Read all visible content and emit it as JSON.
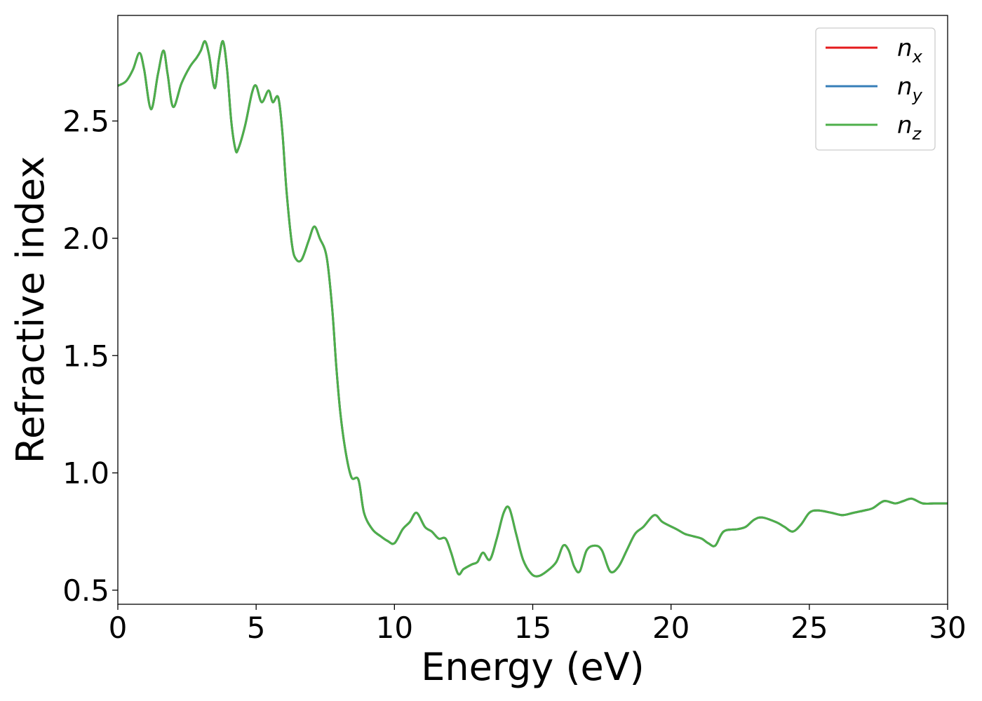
{
  "chart_data": {
    "type": "line",
    "xlabel": "Energy (eV)",
    "ylabel": "Refractive index",
    "xlim": [
      0,
      30
    ],
    "ylim": [
      0.44,
      2.95
    ],
    "xticks": [
      0,
      5,
      10,
      15,
      20,
      25,
      30
    ],
    "xtick_labels": [
      "0",
      "5",
      "10",
      "15",
      "20",
      "25",
      "30"
    ],
    "yticks": [
      0.5,
      1.0,
      1.5,
      2.0,
      2.5
    ],
    "ytick_labels": [
      "0.5",
      "1.0",
      "1.5",
      "2.0",
      "2.5"
    ],
    "grid": false,
    "legend_position": "top-right",
    "x": [
      0,
      0.3,
      0.55,
      0.78,
      0.95,
      1.2,
      1.45,
      1.65,
      1.8,
      2.0,
      2.3,
      2.6,
      2.85,
      3.0,
      3.15,
      3.3,
      3.5,
      3.65,
      3.8,
      3.95,
      4.1,
      4.25,
      4.35,
      4.6,
      4.85,
      5.0,
      5.2,
      5.45,
      5.6,
      5.8,
      5.95,
      6.1,
      6.3,
      6.45,
      6.65,
      6.9,
      7.1,
      7.3,
      7.55,
      7.75,
      7.9,
      8.05,
      8.25,
      8.45,
      8.7,
      8.9,
      9.2,
      9.5,
      9.75,
      10.0,
      10.3,
      10.55,
      10.8,
      11.1,
      11.35,
      11.6,
      11.85,
      12.05,
      12.3,
      12.5,
      12.8,
      13.0,
      13.2,
      13.45,
      13.7,
      13.95,
      14.15,
      14.4,
      14.65,
      14.95,
      15.2,
      15.5,
      15.85,
      16.1,
      16.3,
      16.5,
      16.7,
      16.95,
      17.25,
      17.5,
      17.8,
      18.1,
      18.4,
      18.7,
      19.0,
      19.4,
      19.7,
      20.2,
      20.5,
      20.8,
      21.1,
      21.35,
      21.6,
      21.9,
      22.4,
      22.7,
      23.0,
      23.3,
      23.8,
      24.1,
      24.4,
      24.7,
      25.0,
      25.3,
      25.8,
      26.2,
      26.6,
      27.0,
      27.3,
      27.7,
      28.1,
      28.4,
      28.7,
      29.1,
      29.5,
      30.0
    ],
    "series": [
      {
        "name": "n_x",
        "color": "#e41a1c",
        "values": [
          2.65,
          2.67,
          2.72,
          2.79,
          2.72,
          2.55,
          2.7,
          2.8,
          2.7,
          2.56,
          2.66,
          2.73,
          2.77,
          2.8,
          2.84,
          2.78,
          2.64,
          2.76,
          2.84,
          2.72,
          2.5,
          2.38,
          2.38,
          2.48,
          2.62,
          2.65,
          2.58,
          2.63,
          2.58,
          2.6,
          2.45,
          2.2,
          1.97,
          1.91,
          1.91,
          1.99,
          2.05,
          2.0,
          1.92,
          1.7,
          1.45,
          1.25,
          1.08,
          0.98,
          0.97,
          0.83,
          0.76,
          0.73,
          0.71,
          0.7,
          0.76,
          0.79,
          0.83,
          0.77,
          0.75,
          0.72,
          0.72,
          0.66,
          0.57,
          0.59,
          0.61,
          0.62,
          0.66,
          0.63,
          0.72,
          0.83,
          0.85,
          0.74,
          0.63,
          0.57,
          0.56,
          0.58,
          0.62,
          0.69,
          0.67,
          0.6,
          0.58,
          0.67,
          0.69,
          0.67,
          0.58,
          0.6,
          0.67,
          0.74,
          0.77,
          0.82,
          0.79,
          0.76,
          0.74,
          0.73,
          0.72,
          0.7,
          0.69,
          0.75,
          0.76,
          0.77,
          0.8,
          0.81,
          0.79,
          0.77,
          0.75,
          0.78,
          0.83,
          0.84,
          0.83,
          0.82,
          0.83,
          0.84,
          0.85,
          0.88,
          0.87,
          0.88,
          0.89,
          0.87,
          0.87,
          0.87
        ]
      },
      {
        "name": "n_y",
        "color": "#377eb8",
        "values": [
          2.65,
          2.67,
          2.72,
          2.79,
          2.72,
          2.55,
          2.7,
          2.8,
          2.7,
          2.56,
          2.66,
          2.73,
          2.77,
          2.8,
          2.84,
          2.78,
          2.64,
          2.76,
          2.84,
          2.72,
          2.5,
          2.38,
          2.38,
          2.48,
          2.62,
          2.65,
          2.58,
          2.63,
          2.58,
          2.6,
          2.45,
          2.2,
          1.97,
          1.91,
          1.91,
          1.99,
          2.05,
          2.0,
          1.92,
          1.7,
          1.45,
          1.25,
          1.08,
          0.98,
          0.97,
          0.83,
          0.76,
          0.73,
          0.71,
          0.7,
          0.76,
          0.79,
          0.83,
          0.77,
          0.75,
          0.72,
          0.72,
          0.66,
          0.57,
          0.59,
          0.61,
          0.62,
          0.66,
          0.63,
          0.72,
          0.83,
          0.85,
          0.74,
          0.63,
          0.57,
          0.56,
          0.58,
          0.62,
          0.69,
          0.67,
          0.6,
          0.58,
          0.67,
          0.69,
          0.67,
          0.58,
          0.6,
          0.67,
          0.74,
          0.77,
          0.82,
          0.79,
          0.76,
          0.74,
          0.73,
          0.72,
          0.7,
          0.69,
          0.75,
          0.76,
          0.77,
          0.8,
          0.81,
          0.79,
          0.77,
          0.75,
          0.78,
          0.83,
          0.84,
          0.83,
          0.82,
          0.83,
          0.84,
          0.85,
          0.88,
          0.87,
          0.88,
          0.89,
          0.87,
          0.87,
          0.87
        ]
      },
      {
        "name": "n_z",
        "color": "#4daf4a",
        "values": [
          2.65,
          2.67,
          2.72,
          2.79,
          2.72,
          2.55,
          2.7,
          2.8,
          2.7,
          2.56,
          2.66,
          2.73,
          2.77,
          2.8,
          2.84,
          2.78,
          2.64,
          2.76,
          2.84,
          2.72,
          2.5,
          2.38,
          2.38,
          2.48,
          2.62,
          2.65,
          2.58,
          2.63,
          2.58,
          2.6,
          2.45,
          2.2,
          1.97,
          1.91,
          1.91,
          1.99,
          2.05,
          2.0,
          1.92,
          1.7,
          1.45,
          1.25,
          1.08,
          0.98,
          0.97,
          0.83,
          0.76,
          0.73,
          0.71,
          0.7,
          0.76,
          0.79,
          0.83,
          0.77,
          0.75,
          0.72,
          0.72,
          0.66,
          0.57,
          0.59,
          0.61,
          0.62,
          0.66,
          0.63,
          0.72,
          0.83,
          0.85,
          0.74,
          0.63,
          0.57,
          0.56,
          0.58,
          0.62,
          0.69,
          0.67,
          0.6,
          0.58,
          0.67,
          0.69,
          0.67,
          0.58,
          0.6,
          0.67,
          0.74,
          0.77,
          0.82,
          0.79,
          0.76,
          0.74,
          0.73,
          0.72,
          0.7,
          0.69,
          0.75,
          0.76,
          0.77,
          0.8,
          0.81,
          0.79,
          0.77,
          0.75,
          0.78,
          0.83,
          0.84,
          0.83,
          0.82,
          0.83,
          0.84,
          0.85,
          0.88,
          0.87,
          0.88,
          0.89,
          0.87,
          0.87,
          0.87
        ]
      }
    ],
    "legend": [
      {
        "base": "n",
        "sub": "x",
        "color": "#e41a1c"
      },
      {
        "base": "n",
        "sub": "y",
        "color": "#377eb8"
      },
      {
        "base": "n",
        "sub": "z",
        "color": "#4daf4a"
      }
    ]
  }
}
